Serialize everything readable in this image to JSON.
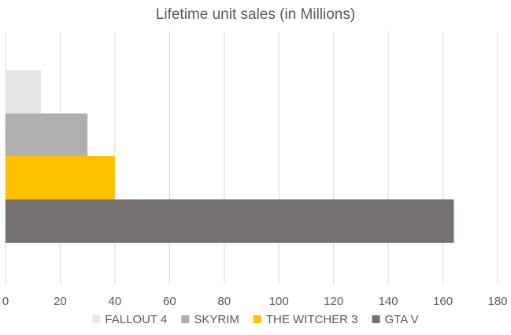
{
  "chart_data": {
    "type": "bar",
    "orientation": "horizontal",
    "title": "Lifetime unit sales (in Millions)",
    "xlabel": "",
    "ylabel": "",
    "xlim": [
      0,
      180
    ],
    "x_ticks": [
      0,
      20,
      40,
      60,
      80,
      100,
      120,
      140,
      160,
      180
    ],
    "grid": "vertical",
    "legend_position": "bottom",
    "series": [
      {
        "name": "FALLOUT 4",
        "value": 13,
        "color": "#e7e6e6"
      },
      {
        "name": "SKYRIM",
        "value": 30,
        "color": "#b0aeae"
      },
      {
        "name": "THE WITCHER 3",
        "value": 40,
        "color": "#ffc000"
      },
      {
        "name": "GTA V",
        "value": 164,
        "color": "#767171"
      }
    ]
  }
}
